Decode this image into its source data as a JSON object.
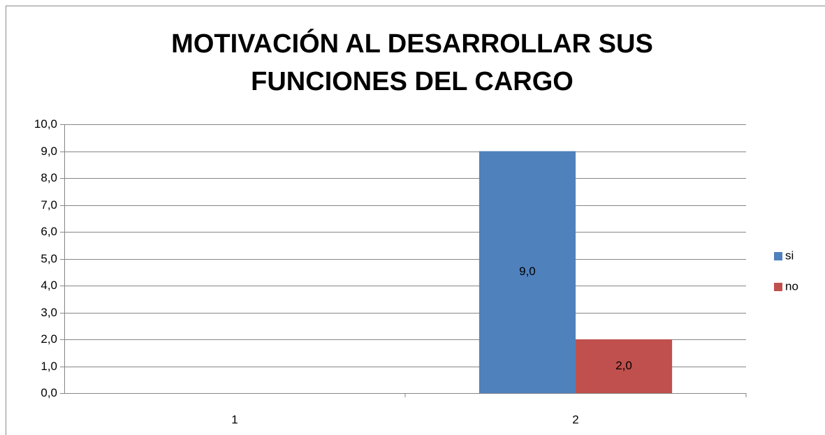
{
  "chart_data": {
    "type": "bar",
    "title": "MOTIVACIÓN AL DESARROLLAR SUS FUNCIONES DEL CARGO",
    "categories": [
      "1",
      "2"
    ],
    "series": [
      {
        "name": "si",
        "color": "#4f81bd",
        "values": [
          null,
          9
        ],
        "value_labels": [
          null,
          "9,0"
        ]
      },
      {
        "name": "no",
        "color": "#c0504d",
        "values": [
          null,
          2
        ],
        "value_labels": [
          null,
          "2,0"
        ]
      }
    ],
    "ylim": [
      0,
      10
    ],
    "yticks": [
      {
        "value": 0,
        "label": "0,0"
      },
      {
        "value": 1,
        "label": "1,0"
      },
      {
        "value": 2,
        "label": "2,0"
      },
      {
        "value": 3,
        "label": "3,0"
      },
      {
        "value": 4,
        "label": "4,0"
      },
      {
        "value": 5,
        "label": "5,0"
      },
      {
        "value": 6,
        "label": "6,0"
      },
      {
        "value": 7,
        "label": "7,0"
      },
      {
        "value": 8,
        "label": "8,0"
      },
      {
        "value": 9,
        "label": "9,0"
      },
      {
        "value": 10,
        "label": "10,0"
      }
    ],
    "grid": true,
    "legend": "right"
  }
}
